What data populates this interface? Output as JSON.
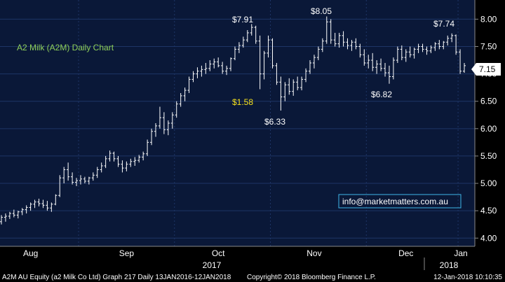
{
  "chart_data": {
    "type": "ohlc",
    "title": "A2 Milk (A2M) Daily Chart",
    "ylim": [
      3.85,
      8.35
    ],
    "yticks": [
      "4.00",
      "4.50",
      "5.00",
      "5.50",
      "6.00",
      "6.50",
      "7.00",
      "7.50",
      "8.00"
    ],
    "ytick_values": [
      4.0,
      4.5,
      5.0,
      5.5,
      6.0,
      6.5,
      7.0,
      7.5,
      8.0
    ],
    "last_price": "7.15",
    "month_labels": [
      "Aug",
      "Sep",
      "Oct",
      "Nov",
      "Dec",
      "Jan"
    ],
    "year_labels": [
      "2017",
      "2018"
    ],
    "annotations": [
      {
        "text": "$7.91",
        "value": 7.91
      },
      {
        "text": "$8.05",
        "value": 8.05
      },
      {
        "text": "$7.74",
        "value": 7.74
      },
      {
        "text": "$6.33",
        "value": 6.33
      },
      {
        "text": "$6.82",
        "value": 6.82
      },
      {
        "text": "$1.58",
        "value": 1.58
      }
    ],
    "bars": [
      [
        4.3,
        4.42,
        4.25,
        4.38
      ],
      [
        4.38,
        4.45,
        4.3,
        4.4
      ],
      [
        4.4,
        4.48,
        4.35,
        4.45
      ],
      [
        4.45,
        4.52,
        4.38,
        4.42
      ],
      [
        4.42,
        4.5,
        4.36,
        4.48
      ],
      [
        4.48,
        4.55,
        4.42,
        4.52
      ],
      [
        4.52,
        4.6,
        4.45,
        4.56
      ],
      [
        4.56,
        4.65,
        4.5,
        4.62
      ],
      [
        4.62,
        4.7,
        4.55,
        4.66
      ],
      [
        4.66,
        4.72,
        4.58,
        4.63
      ],
      [
        4.63,
        4.7,
        4.55,
        4.6
      ],
      [
        4.6,
        4.68,
        4.5,
        4.55
      ],
      [
        4.55,
        4.65,
        4.48,
        4.62
      ],
      [
        4.62,
        4.8,
        4.6,
        4.78
      ],
      [
        4.78,
        5.15,
        4.75,
        5.1
      ],
      [
        5.1,
        5.3,
        5.0,
        5.25
      ],
      [
        5.25,
        5.38,
        5.05,
        5.12
      ],
      [
        5.12,
        5.2,
        4.98,
        5.02
      ],
      [
        5.02,
        5.1,
        4.95,
        5.05
      ],
      [
        5.05,
        5.15,
        4.98,
        5.08
      ],
      [
        5.08,
        5.12,
        5.0,
        5.04
      ],
      [
        5.04,
        5.12,
        4.98,
        5.1
      ],
      [
        5.1,
        5.2,
        5.05,
        5.15
      ],
      [
        5.15,
        5.3,
        5.1,
        5.25
      ],
      [
        5.25,
        5.38,
        5.2,
        5.32
      ],
      [
        5.32,
        5.5,
        5.28,
        5.45
      ],
      [
        5.45,
        5.6,
        5.4,
        5.55
      ],
      [
        5.55,
        5.58,
        5.4,
        5.45
      ],
      [
        5.45,
        5.5,
        5.3,
        5.35
      ],
      [
        5.35,
        5.42,
        5.2,
        5.28
      ],
      [
        5.28,
        5.4,
        5.22,
        5.35
      ],
      [
        5.35,
        5.45,
        5.3,
        5.4
      ],
      [
        5.4,
        5.48,
        5.32,
        5.42
      ],
      [
        5.42,
        5.52,
        5.38,
        5.48
      ],
      [
        5.48,
        5.58,
        5.42,
        5.54
      ],
      [
        5.54,
        5.8,
        5.5,
        5.75
      ],
      [
        5.75,
        6.0,
        5.7,
        5.95
      ],
      [
        5.95,
        6.1,
        5.85,
        6.05
      ],
      [
        6.05,
        6.4,
        6.0,
        6.2
      ],
      [
        6.2,
        6.3,
        5.9,
        5.98
      ],
      [
        5.98,
        6.15,
        5.88,
        6.1
      ],
      [
        6.1,
        6.3,
        6.0,
        6.25
      ],
      [
        6.25,
        6.5,
        6.2,
        6.45
      ],
      [
        6.45,
        6.65,
        6.4,
        6.6
      ],
      [
        6.6,
        6.75,
        6.5,
        6.7
      ],
      [
        6.7,
        6.95,
        6.65,
        6.9
      ],
      [
        6.9,
        7.05,
        6.85,
        7.0
      ],
      [
        7.0,
        7.12,
        6.92,
        7.05
      ],
      [
        7.05,
        7.15,
        6.95,
        7.08
      ],
      [
        7.08,
        7.2,
        7.0,
        7.1
      ],
      [
        7.1,
        7.25,
        7.05,
        7.18
      ],
      [
        7.18,
        7.28,
        7.1,
        7.22
      ],
      [
        7.22,
        7.3,
        7.12,
        7.15
      ],
      [
        7.15,
        7.22,
        7.0,
        7.05
      ],
      [
        7.05,
        7.15,
        6.98,
        7.1
      ],
      [
        7.1,
        7.3,
        7.05,
        7.28
      ],
      [
        7.28,
        7.5,
        7.25,
        7.45
      ],
      [
        7.45,
        7.58,
        7.38,
        7.52
      ],
      [
        7.52,
        7.68,
        7.48,
        7.62
      ],
      [
        7.62,
        7.8,
        7.58,
        7.75
      ],
      [
        7.75,
        7.91,
        7.7,
        7.85
      ],
      [
        7.85,
        7.88,
        7.55,
        7.6
      ],
      [
        7.6,
        7.7,
        6.72,
        7.0
      ],
      [
        7.0,
        7.42,
        6.9,
        7.38
      ],
      [
        7.38,
        7.7,
        7.3,
        7.62
      ],
      [
        7.62,
        7.65,
        7.1,
        7.15
      ],
      [
        7.15,
        7.2,
        6.8,
        6.85
      ],
      [
        6.85,
        6.95,
        6.33,
        6.58
      ],
      [
        6.58,
        6.85,
        6.5,
        6.8
      ],
      [
        6.8,
        6.92,
        6.62,
        6.68
      ],
      [
        6.68,
        6.9,
        6.6,
        6.85
      ],
      [
        6.85,
        6.95,
        6.7,
        6.75
      ],
      [
        6.75,
        6.95,
        6.7,
        6.9
      ],
      [
        6.9,
        7.1,
        6.85,
        7.05
      ],
      [
        7.05,
        7.25,
        7.0,
        7.2
      ],
      [
        7.2,
        7.35,
        7.1,
        7.3
      ],
      [
        7.3,
        7.5,
        7.25,
        7.45
      ],
      [
        7.45,
        7.65,
        7.4,
        7.6
      ],
      [
        7.6,
        8.05,
        7.55,
        7.95
      ],
      [
        7.95,
        8.0,
        7.55,
        7.62
      ],
      [
        7.62,
        7.75,
        7.5,
        7.55
      ],
      [
        7.55,
        7.75,
        7.48,
        7.7
      ],
      [
        7.7,
        7.78,
        7.5,
        7.58
      ],
      [
        7.58,
        7.65,
        7.45,
        7.52
      ],
      [
        7.52,
        7.62,
        7.42,
        7.58
      ],
      [
        7.58,
        7.65,
        7.45,
        7.5
      ],
      [
        7.5,
        7.55,
        7.3,
        7.35
      ],
      [
        7.35,
        7.45,
        7.15,
        7.2
      ],
      [
        7.2,
        7.35,
        7.1,
        7.25
      ],
      [
        7.25,
        7.38,
        7.05,
        7.12
      ],
      [
        7.12,
        7.25,
        7.0,
        7.18
      ],
      [
        7.18,
        7.28,
        7.05,
        7.1
      ],
      [
        7.1,
        7.2,
        6.95,
        7.02
      ],
      [
        7.02,
        7.15,
        6.82,
        6.95
      ],
      [
        6.95,
        7.3,
        6.9,
        7.25
      ],
      [
        7.25,
        7.5,
        7.2,
        7.45
      ],
      [
        7.45,
        7.52,
        7.25,
        7.3
      ],
      [
        7.3,
        7.45,
        7.22,
        7.4
      ],
      [
        7.4,
        7.5,
        7.3,
        7.35
      ],
      [
        7.35,
        7.48,
        7.28,
        7.45
      ],
      [
        7.45,
        7.55,
        7.38,
        7.5
      ],
      [
        7.5,
        7.55,
        7.4,
        7.45
      ],
      [
        7.45,
        7.5,
        7.35,
        7.42
      ],
      [
        7.42,
        7.52,
        7.38,
        7.48
      ],
      [
        7.48,
        7.58,
        7.42,
        7.55
      ],
      [
        7.55,
        7.62,
        7.45,
        7.5
      ],
      [
        7.5,
        7.6,
        7.45,
        7.58
      ],
      [
        7.58,
        7.7,
        7.52,
        7.65
      ],
      [
        7.65,
        7.74,
        7.58,
        7.7
      ],
      [
        7.7,
        7.72,
        7.35,
        7.4
      ],
      [
        7.4,
        7.45,
        7.0,
        7.05
      ],
      [
        7.05,
        7.2,
        7.02,
        7.15
      ]
    ]
  },
  "logo_email": "info@marketmatters.com.au",
  "footer": {
    "left": "A2M AU Equity (a2 Milk Co Ltd) Graph 217  Daily 13JAN2016-12JAN2018",
    "copyright": "Copyright© 2018 Bloomberg Finance L.P.",
    "timestamp": "12-Jan-2018 10:10:35"
  }
}
